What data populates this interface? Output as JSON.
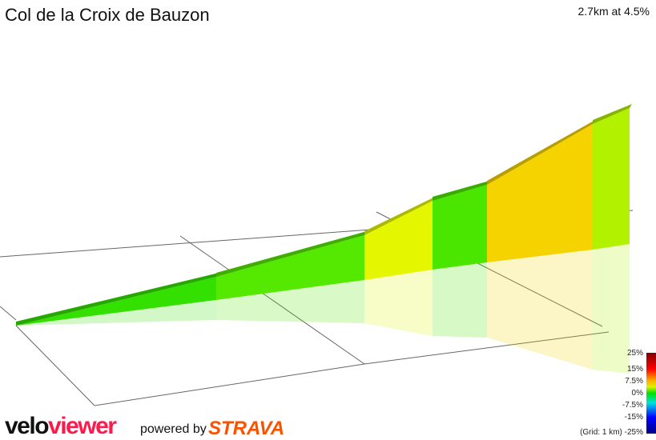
{
  "title": "Col de la Croix de Bauzon",
  "summary": "2.7km at 4.5%",
  "legend": {
    "labels": [
      "25%",
      "15%",
      "7.5%",
      "0%",
      "-7.5%",
      "-15%",
      "-25%"
    ],
    "grid_note": "(Grid: 1 km)"
  },
  "segment_colors": [
    "#33e000",
    "#55e800",
    "#e4f600",
    "#4be600",
    "#f5d300",
    "#b2f200"
  ],
  "branding": {
    "velo": "velo",
    "viewer": "viewer",
    "powered": "powered by",
    "strava": "STRAVA",
    "velo_color": "#111111",
    "viewer_color": "#ff1a4b",
    "strava_color": "#fc5200"
  }
}
